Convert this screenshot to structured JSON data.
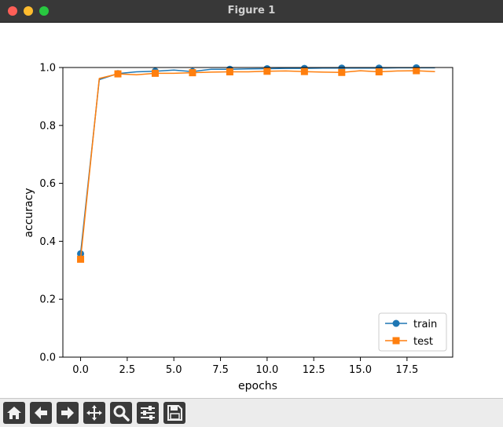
{
  "window": {
    "title": "Figure 1"
  },
  "toolbar": {
    "buttons": [
      {
        "name": "home-button",
        "icon": "home-icon"
      },
      {
        "name": "back-button",
        "icon": "arrow-left-icon"
      },
      {
        "name": "forward-button",
        "icon": "arrow-right-icon"
      },
      {
        "name": "pan-button",
        "icon": "move-icon"
      },
      {
        "name": "zoom-button",
        "icon": "magnifier-icon"
      },
      {
        "name": "configure-subplots-button",
        "icon": "sliders-icon"
      },
      {
        "name": "save-button",
        "icon": "floppy-disk-icon"
      }
    ]
  },
  "chart_data": {
    "type": "line",
    "title": "",
    "xlabel": "epochs",
    "ylabel": "accuracy",
    "xlim": [
      -0.95,
      19.95
    ],
    "ylim": [
      0.0,
      1.0
    ],
    "xticks": [
      "0.0",
      "2.5",
      "5.0",
      "7.5",
      "10.0",
      "12.5",
      "15.0",
      "17.5"
    ],
    "yticks": [
      "0.0",
      "0.2",
      "0.4",
      "0.6",
      "0.8",
      "1.0"
    ],
    "grid": false,
    "legend_position": "lower-right",
    "x": [
      0,
      1,
      2,
      3,
      4,
      5,
      6,
      7,
      8,
      9,
      10,
      11,
      12,
      13,
      14,
      15,
      16,
      17,
      18,
      19
    ],
    "series": [
      {
        "name": "train",
        "color": "#1f77b4",
        "marker": "circle",
        "marker_every": 2,
        "values": [
          0.357,
          0.958,
          0.979,
          0.985,
          0.987,
          0.991,
          0.986,
          0.994,
          0.994,
          0.995,
          0.996,
          0.997,
          0.997,
          0.998,
          0.998,
          0.998,
          0.998,
          0.999,
          0.999,
          0.999
        ]
      },
      {
        "name": "test",
        "color": "#ff7f0e",
        "marker": "square",
        "marker_every": 2,
        "values": [
          0.338,
          0.962,
          0.978,
          0.975,
          0.98,
          0.98,
          0.982,
          0.984,
          0.985,
          0.985,
          0.987,
          0.988,
          0.986,
          0.984,
          0.983,
          0.989,
          0.985,
          0.988,
          0.989,
          0.986
        ]
      }
    ]
  }
}
